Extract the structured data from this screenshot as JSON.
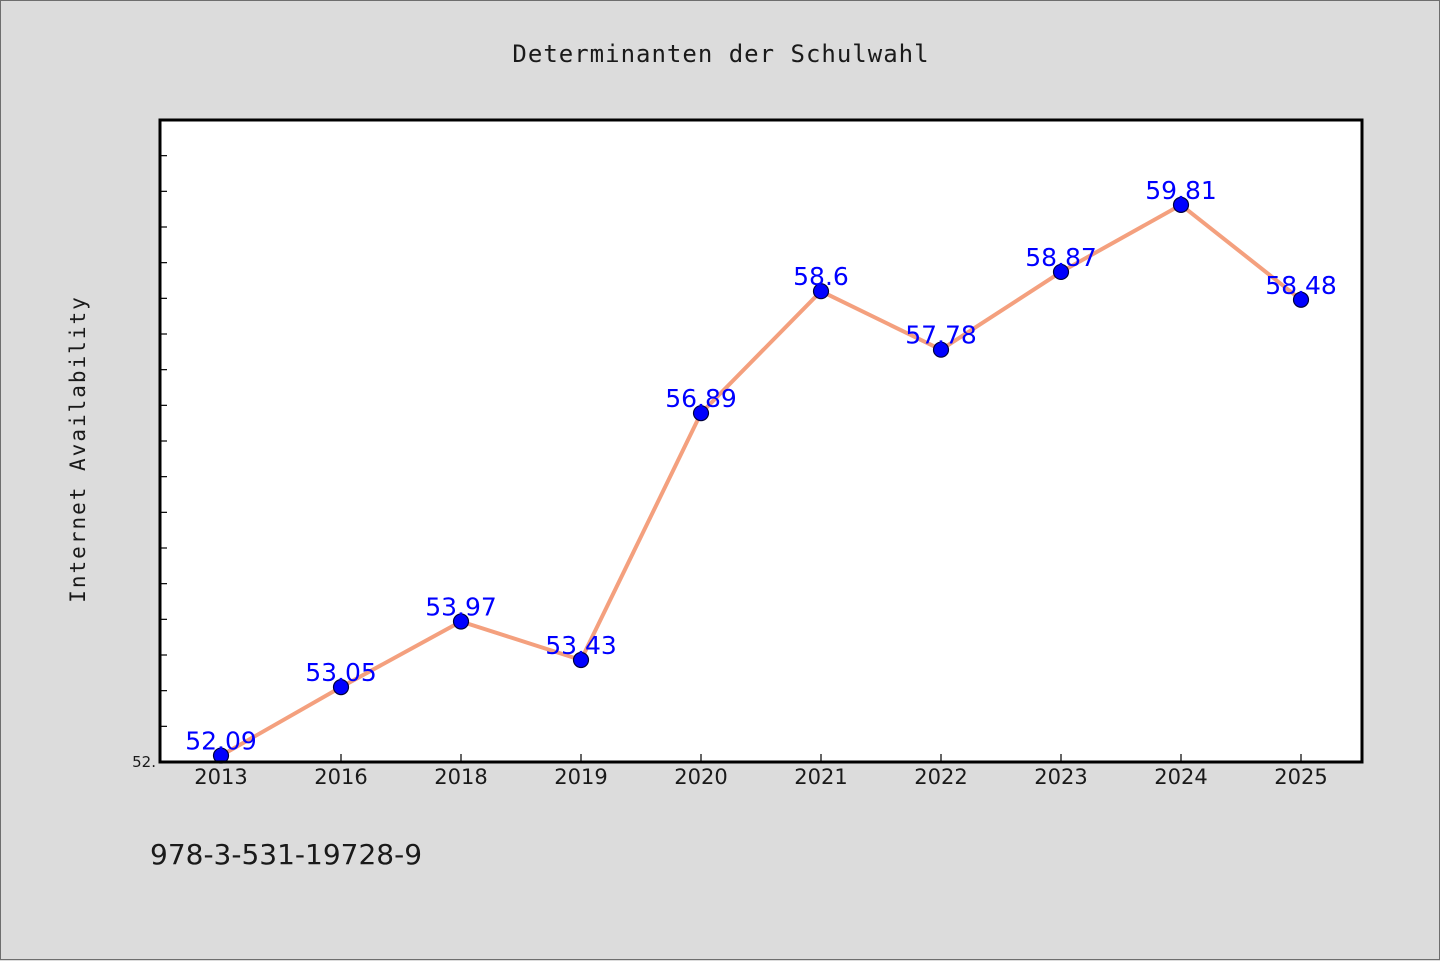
{
  "chart_data": {
    "type": "line",
    "title": "Determinanten der Schulwahl",
    "xlabel": "",
    "ylabel": "Internet Availability",
    "categories": [
      "2013",
      "2016",
      "2018",
      "2019",
      "2020",
      "2021",
      "2022",
      "2023",
      "2024",
      "2025"
    ],
    "series": [
      {
        "values": [
          52.09,
          53.05,
          53.97,
          53.43,
          56.89,
          58.6,
          57.78,
          58.87,
          59.81,
          58.48
        ],
        "data_labels": [
          "52.09",
          "53.05",
          "53.97",
          "53.43",
          "56.89",
          "58.6",
          "57.78",
          "58.87",
          "59.81",
          "58.48"
        ]
      }
    ],
    "ytick_labels": [
      "52."
    ],
    "ylim": [
      52.0,
      61.0
    ],
    "grid": false,
    "colors": {
      "line": "#f4a07e",
      "marker": "#0000ff",
      "marker_edge": "#00003c",
      "data_label": "#0000ff",
      "plot_background": "#ffffff",
      "figure_background": "#dcdcdc"
    }
  },
  "footnote": "978-3-531-19728-9"
}
